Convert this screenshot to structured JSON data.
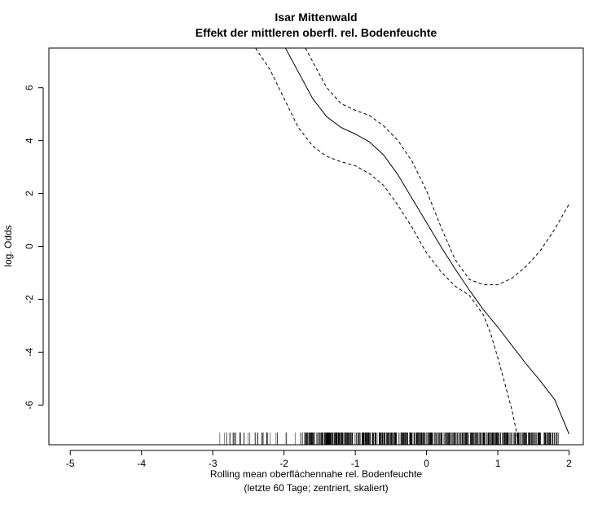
{
  "chart_data": {
    "type": "line",
    "title": "Isar Mittenwald",
    "subtitle": "Effekt der mittleren oberfl. rel. Bodenfeuchte",
    "xlabel": "Rolling mean oberflächennahe rel. Bodenfeuchte",
    "xlabel2": "(letzte 60 Tage; zentriert, skaliert)",
    "ylabel": "log. Odds",
    "xlim": [
      -5.3,
      2.2
    ],
    "ylim": [
      -7.5,
      7.5
    ],
    "xticks": [
      -5,
      -4,
      -3,
      -2,
      -1,
      0,
      1,
      2
    ],
    "yticks": [
      -6,
      -4,
      -2,
      0,
      2,
      4,
      6
    ],
    "grid": false,
    "series": [
      {
        "style": "solid",
        "x": [
          -1.98,
          -1.8,
          -1.6,
          -1.4,
          -1.2,
          -1.0,
          -0.8,
          -0.6,
          -0.4,
          -0.2,
          0.0,
          0.2,
          0.4,
          0.6,
          0.8,
          1.0,
          1.2,
          1.4,
          1.6,
          1.8,
          2.0
        ],
        "y": [
          7.5,
          6.6,
          5.6,
          4.9,
          4.5,
          4.25,
          3.95,
          3.45,
          2.7,
          1.8,
          0.9,
          0.0,
          -0.85,
          -1.65,
          -2.4,
          -3.05,
          -3.75,
          -4.45,
          -5.1,
          -5.8,
          -7.1
        ]
      },
      {
        "style": "dashed",
        "x": [
          -1.7,
          -1.6,
          -1.4,
          -1.2,
          -1.0,
          -0.8,
          -0.6,
          -0.4,
          -0.2,
          0.0,
          0.2,
          0.4,
          0.6,
          0.8,
          1.0,
          1.2,
          1.4,
          1.6,
          1.8,
          2.0
        ],
        "y": [
          7.5,
          7.0,
          6.0,
          5.4,
          5.15,
          4.95,
          4.55,
          4.0,
          3.2,
          2.1,
          0.75,
          -0.5,
          -1.25,
          -1.45,
          -1.45,
          -1.2,
          -0.75,
          -0.15,
          0.65,
          1.6
        ]
      },
      {
        "style": "dashed",
        "x": [
          -2.4,
          -2.2,
          -2.0,
          -1.8,
          -1.6,
          -1.4,
          -1.2,
          -1.0,
          -0.8,
          -0.6,
          -0.4,
          -0.2,
          0.0,
          0.2,
          0.4,
          0.6,
          0.8,
          0.9,
          1.0,
          1.1,
          1.2,
          1.3
        ],
        "y": [
          7.5,
          6.7,
          5.6,
          4.5,
          3.8,
          3.4,
          3.2,
          3.05,
          2.75,
          2.3,
          1.55,
          0.7,
          -0.25,
          -0.95,
          -1.5,
          -1.85,
          -2.6,
          -3.3,
          -4.2,
          -5.2,
          -6.2,
          -7.5
        ]
      }
    ],
    "rug": {
      "min": -2.9,
      "max": 1.85,
      "dense_start": -1.7,
      "count": 700
    }
  }
}
